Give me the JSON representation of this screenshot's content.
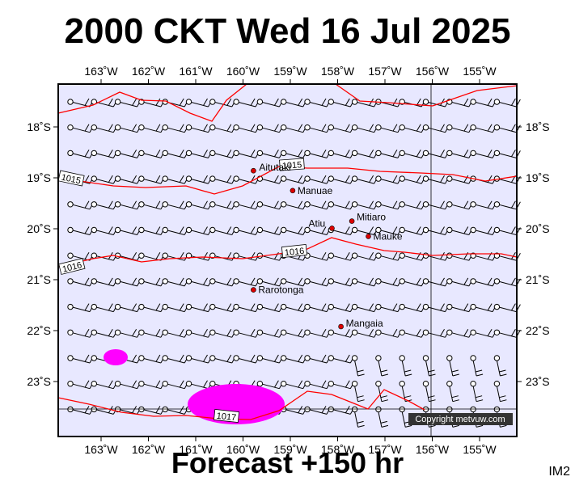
{
  "title": "2000 CKT Wed 16 Jul 2025",
  "footer": "Forecast +150 hr",
  "image_code": "IM2",
  "copyright": "Copyright metvuw.com",
  "colors": {
    "ocean": "#e8e8ff",
    "isobar": "#ff0000",
    "rain": "#ff00ff",
    "place_dot": "#dd0000",
    "frame": "#000000"
  },
  "axes": {
    "lon_labels": [
      "163˚W",
      "162˚W",
      "161˚W",
      "160˚W",
      "159˚W",
      "158˚W",
      "157˚W",
      "156˚W",
      "155˚W"
    ],
    "lat_labels": [
      "18˚S",
      "19˚S",
      "20˚S",
      "21˚S",
      "22˚S",
      "23˚S"
    ]
  },
  "places": [
    {
      "name": "Aitutaki",
      "lon": -159.78,
      "lat": -18.86
    },
    {
      "name": "Manuae",
      "lon": -158.95,
      "lat": -19.25
    },
    {
      "name": "Atiu",
      "lon": -158.12,
      "lat": -19.99
    },
    {
      "name": "Mitiaro",
      "lon": -157.7,
      "lat": -19.85
    },
    {
      "name": "Mauke",
      "lon": -157.35,
      "lat": -20.15
    },
    {
      "name": "Rarotonga",
      "lon": -159.78,
      "lat": -21.2
    },
    {
      "name": "Mangaia",
      "lon": -157.93,
      "lat": -21.92
    }
  ],
  "isobars": [
    {
      "value": "1015",
      "label_count": 2
    },
    {
      "value": "1016",
      "label_count": 2
    },
    {
      "value": "1017",
      "label_count": 1
    }
  ],
  "rain_areas": [
    {
      "lon": -162.57,
      "lat": -22.52,
      "intensity": "light"
    },
    {
      "lon": -159.92,
      "lat": -23.47,
      "intensity": "light"
    }
  ]
}
